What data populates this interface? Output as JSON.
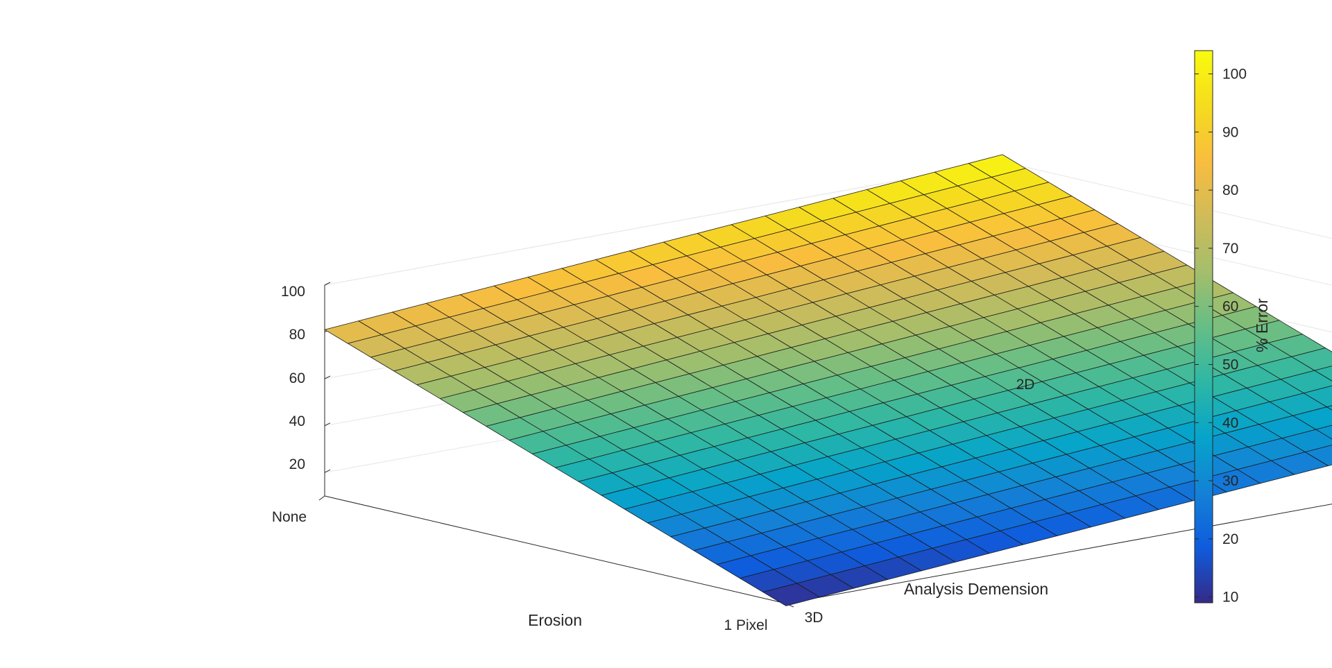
{
  "chart_data": {
    "type": "surface",
    "title": "",
    "xlabel": "Erosion",
    "ylabel": "Analysis Demension",
    "zlabel": "",
    "x_ticks": [
      "None",
      "1 Pixel"
    ],
    "y_ticks": [
      "3D",
      "2D"
    ],
    "z_ticks": [
      "20",
      "40",
      "60",
      "80",
      "100"
    ],
    "zlim": [
      10,
      100
    ],
    "grid_size": [
      20,
      20
    ],
    "corners": [
      {
        "x": "None",
        "y": "3D",
        "z": 81
      },
      {
        "x": "None",
        "y": "2D",
        "z": 103
      },
      {
        "x": "1 Pixel",
        "y": "3D",
        "z": 9
      },
      {
        "x": "1 Pixel",
        "y": "2D",
        "z": 31
      }
    ],
    "colorbar": {
      "label": "% Error",
      "range": [
        9,
        104
      ],
      "ticks": [
        "10",
        "20",
        "30",
        "40",
        "50",
        "60",
        "70",
        "80",
        "90",
        "100"
      ],
      "colormap": "parula"
    },
    "grid": true
  }
}
